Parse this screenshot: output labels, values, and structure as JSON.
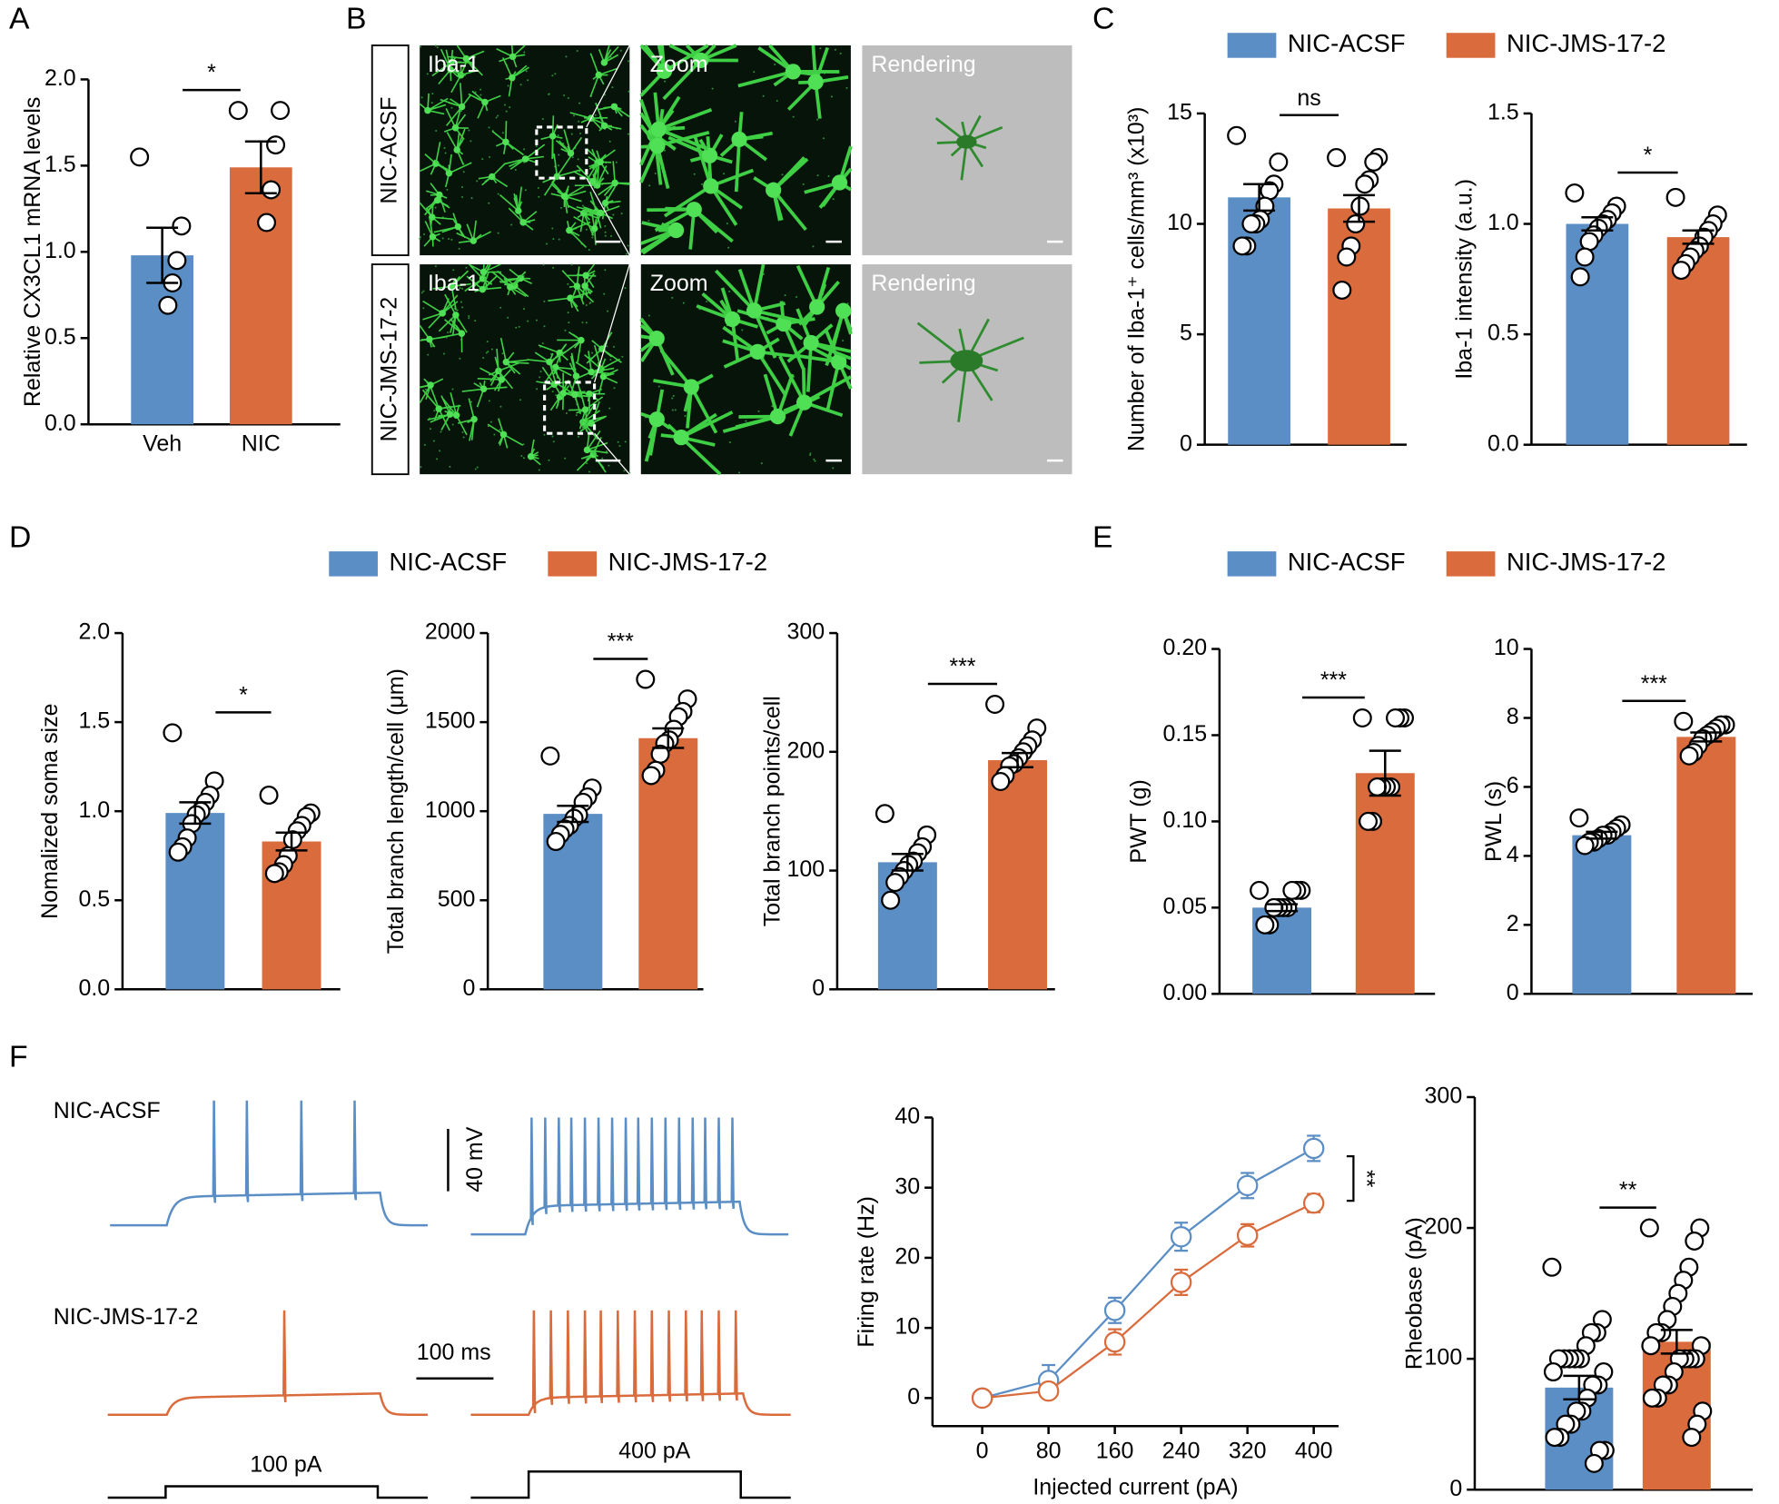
{
  "panel_labels": [
    "A",
    "B",
    "C",
    "D",
    "E",
    "F"
  ],
  "image_panel": {
    "row_labels": [
      "NIC-ACSF",
      "NIC-JMS-17-2"
    ],
    "column_labels": [
      "Iba-1",
      "Zoom",
      "Rendering"
    ]
  },
  "legends": [
    {
      "entries": [
        {
          "name": "NIC-ACSF",
          "color": "#5b8ec5"
        },
        {
          "name": "NIC-JMS-17-2",
          "color": "#d96b3c"
        }
      ]
    },
    {
      "entries": [
        {
          "name": "NIC-ACSF",
          "color": "#5b8ec5"
        },
        {
          "name": "NIC-JMS-17-2",
          "color": "#d96b3c"
        }
      ]
    },
    {
      "entries": [
        {
          "name": "NIC-ACSF",
          "color": "#5b8ec5"
        },
        {
          "name": "NIC-JMS-17-2",
          "color": "#d96b3c"
        }
      ]
    }
  ],
  "traces": {
    "row_labels": [
      "NIC-ACSF",
      "NIC-JMS-17-2"
    ],
    "voltage_scale": "40 mV",
    "time_scale": "100 ms",
    "currents": [
      "100 pA",
      "400 pA"
    ],
    "colors": [
      "#5b8ec5",
      "#d96b3c"
    ]
  },
  "chart_data": [
    {
      "type": "bar",
      "ylabel": "Relative CX3CL1 mRNA levels",
      "categories": [
        "Veh",
        "NIC"
      ],
      "ylim": [
        0,
        2
      ],
      "yticks": [
        {
          "value": 0,
          "label": "0.0"
        },
        0.5,
        {
          "value": 1,
          "label": "1.0"
        },
        1.5,
        {
          "value": 2,
          "label": "2.0"
        }
      ],
      "values": [
        0.98,
        1.49
      ],
      "errors": [
        0.16,
        0.15
      ],
      "colors": [
        "#5b8ec5",
        "#d96b3c"
      ],
      "points": [
        [
          1.55,
          1.15,
          0.95,
          0.82,
          0.69
        ],
        [
          1.82,
          1.82,
          1.62,
          1.36,
          1.17
        ]
      ],
      "significance": "*"
    },
    {
      "type": "bar",
      "ylabel": "Number of Iba-1⁺ cells/mm³ (x10³)",
      "ylim": [
        0,
        15
      ],
      "yticks": [
        0,
        5,
        10,
        15
      ],
      "values": [
        11.2,
        10.7
      ],
      "errors": [
        0.6,
        0.6
      ],
      "colors": [
        "#5b8ec5",
        "#d96b3c"
      ],
      "points": [
        [
          14,
          12.8,
          11.8,
          11.5,
          10.8,
          10.2,
          10,
          10,
          9,
          9
        ],
        [
          13,
          13,
          12.8,
          12,
          11.8,
          10.8,
          10,
          9,
          8.5,
          7
        ]
      ],
      "significance": "ns"
    },
    {
      "type": "bar",
      "ylabel": "Iba-1 intensity (a.u.)",
      "ylim": [
        0,
        1.5
      ],
      "yticks": [
        {
          "value": 0,
          "label": "0.0"
        },
        0.5,
        {
          "value": 1,
          "label": "1.0"
        },
        1.5
      ],
      "values": [
        1.0,
        0.94
      ],
      "errors": [
        0.03,
        0.03
      ],
      "colors": [
        "#5b8ec5",
        "#d96b3c"
      ],
      "points": [
        [
          1.14,
          1.08,
          1.05,
          1.02,
          1.0,
          0.98,
          0.95,
          0.92,
          0.85,
          0.76
        ],
        [
          1.12,
          1.04,
          1.0,
          0.97,
          0.94,
          0.9,
          0.88,
          0.85,
          0.82,
          0.79
        ]
      ],
      "significance": "*"
    },
    {
      "type": "bar",
      "ylabel": "Nomalized soma size",
      "ylim": [
        0,
        2
      ],
      "yticks": [
        {
          "value": 0,
          "label": "0.0"
        },
        0.5,
        {
          "value": 1,
          "label": "1.0"
        },
        1.5,
        {
          "value": 2,
          "label": "2.0"
        }
      ],
      "values": [
        0.99,
        0.83
      ],
      "errors": [
        0.06,
        0.05
      ],
      "colors": [
        "#5b8ec5",
        "#d96b3c"
      ],
      "points": [
        [
          1.44,
          1.17,
          1.09,
          1.05,
          1.0,
          0.98,
          0.93,
          0.85,
          0.8,
          0.77
        ],
        [
          1.09,
          0.99,
          0.97,
          0.92,
          0.89,
          0.84,
          0.75,
          0.7,
          0.66,
          0.65
        ]
      ],
      "significance": "*"
    },
    {
      "type": "bar",
      "ylabel": "Total branch length/cell (μm)",
      "ylim": [
        0,
        2000
      ],
      "yticks": [
        0,
        500,
        1000,
        1500,
        2000
      ],
      "values": [
        985,
        1410
      ],
      "errors": [
        45,
        55
      ],
      "colors": [
        "#5b8ec5",
        "#d96b3c"
      ],
      "points": [
        [
          1310,
          1130,
          1080,
          1050,
          980,
          960,
          920,
          900,
          870,
          830
        ],
        [
          1740,
          1630,
          1560,
          1530,
          1460,
          1400,
          1380,
          1320,
          1230,
          1200
        ]
      ],
      "significance": "***"
    },
    {
      "type": "bar",
      "ylabel": "Total branch points/cell",
      "ylim": [
        0,
        300
      ],
      "yticks": [
        0,
        100,
        200,
        300
      ],
      "values": [
        107,
        193
      ],
      "errors": [
        7,
        6
      ],
      "colors": [
        "#5b8ec5",
        "#d96b3c"
      ],
      "points": [
        [
          148,
          130,
          120,
          115,
          108,
          105,
          100,
          95,
          90,
          75
        ],
        [
          240,
          220,
          210,
          205,
          200,
          195,
          190,
          188,
          180,
          175
        ]
      ],
      "significance": "***"
    },
    {
      "type": "bar",
      "ylabel": "PWT (g)",
      "ylim": [
        0,
        0.2
      ],
      "yticks": [
        {
          "value": 0,
          "label": "0.00"
        },
        0.05,
        {
          "value": 0.1,
          "label": "0.10"
        },
        0.15,
        {
          "value": 0.2,
          "label": "0.20"
        }
      ],
      "values": [
        0.05,
        0.128
      ],
      "errors": [
        0.002,
        0.013
      ],
      "colors": [
        "#5b8ec5",
        "#d96b3c"
      ],
      "points": [
        [
          0.06,
          0.06,
          0.06,
          0.06,
          0.05,
          0.05,
          0.05,
          0.05,
          0.04,
          0.04
        ],
        [
          0.16,
          0.16,
          0.16,
          0.16,
          0.12,
          0.12,
          0.12,
          0.12,
          0.1,
          0.1
        ]
      ],
      "significance": "***"
    },
    {
      "type": "bar",
      "ylabel": "PWL (s)",
      "ylim": [
        0,
        10
      ],
      "yticks": [
        0,
        2,
        4,
        6,
        8,
        10
      ],
      "values": [
        4.6,
        7.45
      ],
      "errors": [
        0.1,
        0.13
      ],
      "colors": [
        "#5b8ec5",
        "#d96b3c"
      ],
      "points": [
        [
          5.1,
          4.9,
          4.8,
          4.7,
          4.6,
          4.6,
          4.5,
          4.4,
          4.4,
          4.3
        ],
        [
          7.9,
          7.8,
          7.8,
          7.7,
          7.6,
          7.5,
          7.4,
          7.2,
          7.0,
          6.9
        ]
      ],
      "significance": "***"
    },
    {
      "type": "line",
      "xlabel": "Injected current (pA)",
      "ylabel": "Firing rate (Hz)",
      "x": [
        0,
        80,
        160,
        240,
        320,
        400
      ],
      "xlim": [
        -60,
        430
      ],
      "xticks": [
        0,
        80,
        160,
        240,
        320,
        400
      ],
      "ylim": [
        -4,
        40
      ],
      "yticks": [
        0,
        10,
        20,
        30,
        40
      ],
      "series": [
        {
          "color": "#5b8ec5",
          "values": [
            0,
            2.5,
            12.5,
            23,
            30.3,
            35.6
          ],
          "errors": [
            0.3,
            2.2,
            1.8,
            2,
            1.8,
            1.8
          ]
        },
        {
          "color": "#d96b3c",
          "values": [
            0,
            1,
            8,
            16.5,
            23.2,
            27.8
          ],
          "errors": [
            0.2,
            0.5,
            1.8,
            1.8,
            1.6,
            1.3
          ]
        }
      ],
      "significance": "**"
    },
    {
      "type": "bar",
      "ylabel": "Rheobase (pA)",
      "ylim": [
        0,
        300
      ],
      "yticks": [
        0,
        100,
        200,
        300
      ],
      "values": [
        78,
        113
      ],
      "errors": [
        9,
        9
      ],
      "colors": [
        "#5b8ec5",
        "#d96b3c"
      ],
      "points": [
        [
          170,
          130,
          120,
          120,
          110,
          100,
          100,
          100,
          100,
          100,
          90,
          90,
          80,
          80,
          70,
          60,
          60,
          50,
          50,
          40,
          40,
          30,
          30,
          20
        ],
        [
          200,
          200,
          190,
          170,
          160,
          150,
          140,
          130,
          120,
          120,
          110,
          110,
          100,
          100,
          100,
          100,
          90,
          80,
          80,
          70,
          70,
          60,
          50,
          40
        ]
      ],
      "significance": "**"
    }
  ]
}
